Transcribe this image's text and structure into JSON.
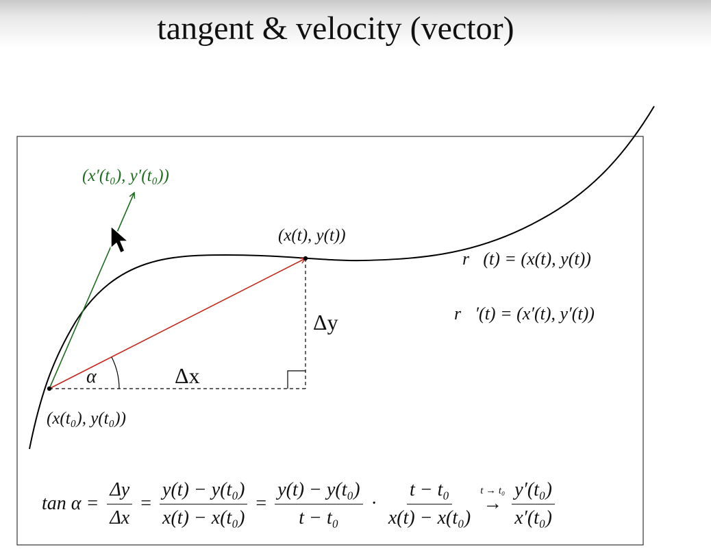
{
  "title": "tangent & velocity (vector)",
  "labels": {
    "tangent_vector": "(x′(t₀), y′(t₀))",
    "point_t": "(x(t), y(t))",
    "point_t0": "(x(t₀), y(t₀))",
    "delta_x": "Δx",
    "delta_y": "Δy",
    "alpha": "α",
    "position_vector": "r⃗(t) = (x(t), y(t))",
    "velocity_vector": "r⃗′(t) = (x′(t), y′(t))"
  },
  "formula": {
    "lhs": "tan α =",
    "f1_num": "Δy",
    "f1_den": "Δx",
    "eq1": "=",
    "f2_num": "y(t) − y(t₀)",
    "f2_den": "x(t) − x(t₀)",
    "eq2": "=",
    "f3_num": "y(t) − y(t₀)",
    "f3_den": "t − t₀",
    "dot": "·",
    "f4_num": "t − t₀",
    "f4_den": "x(t) − x(t₀)",
    "limit_cond": "t → t₀",
    "limit_arrow": "→",
    "f5_num": "y′(t₀)",
    "f5_den": "x′(t₀)"
  },
  "colors": {
    "tangent": "#1f6b1f",
    "secant": "#c0281c",
    "curve": "#000000",
    "frame": "#333333"
  }
}
